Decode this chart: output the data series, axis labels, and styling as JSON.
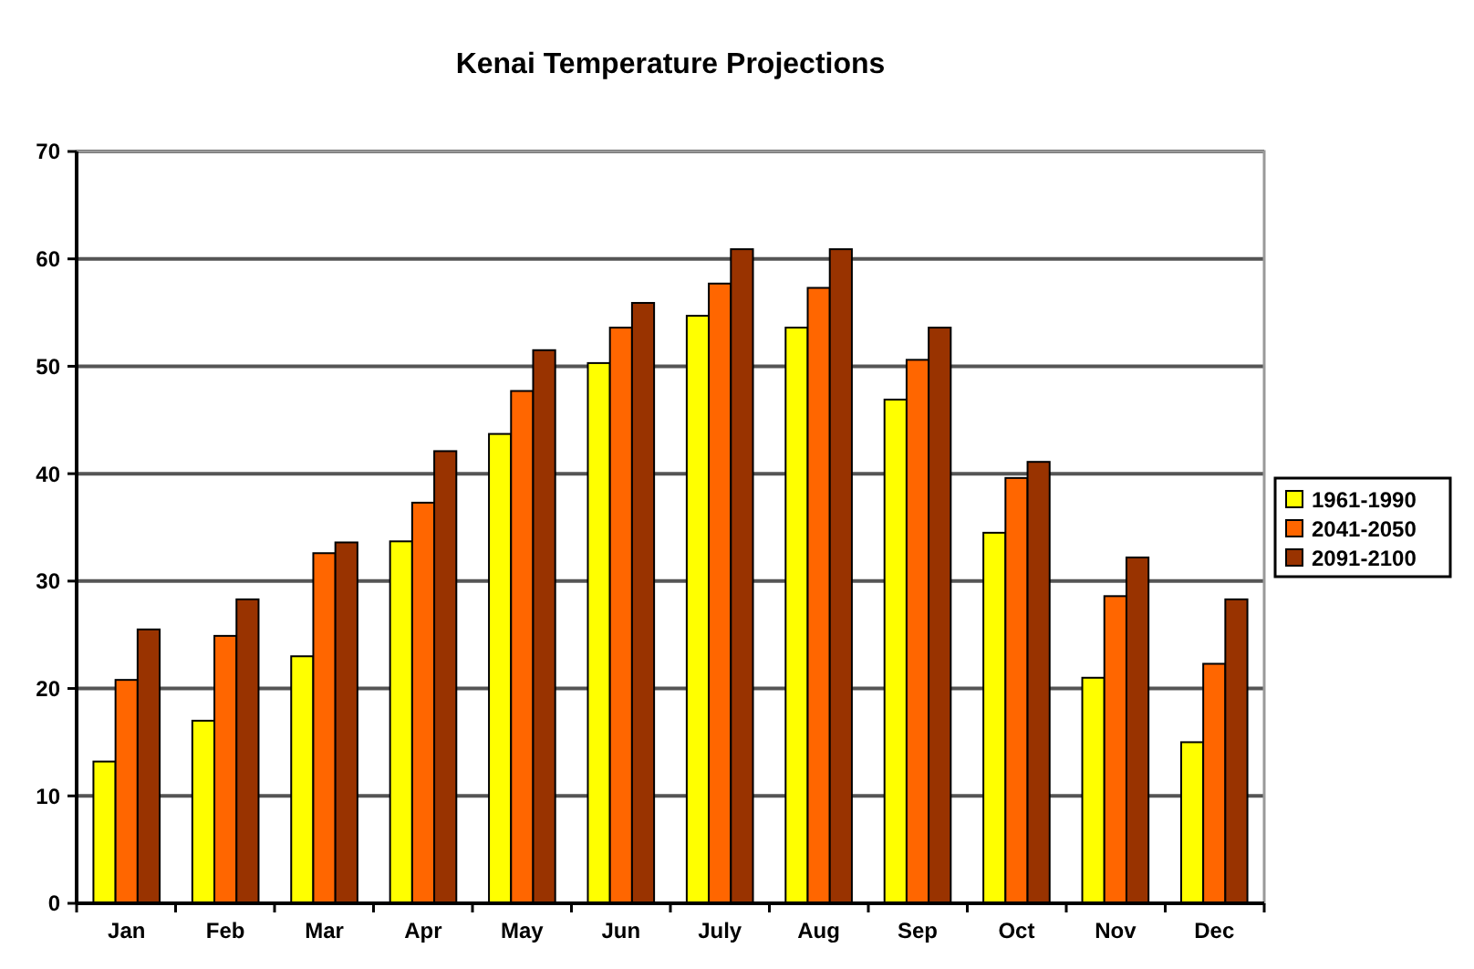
{
  "chart_data": {
    "type": "bar",
    "title": "Kenai Temperature Projections",
    "categories": [
      "Jan",
      "Feb",
      "Mar",
      "Apr",
      "May",
      "Jun",
      "July",
      "Aug",
      "Sep",
      "Oct",
      "Nov",
      "Dec"
    ],
    "series": [
      {
        "name": "1961-1990",
        "color": "#ffff00",
        "values": [
          13.2,
          17,
          23,
          33.7,
          43.7,
          50.3,
          54.7,
          53.6,
          46.9,
          34.5,
          21,
          15
        ]
      },
      {
        "name": "2041-2050",
        "color": "#ff6600",
        "values": [
          20.8,
          24.9,
          32.6,
          37.3,
          47.7,
          53.6,
          57.7,
          57.3,
          50.6,
          39.6,
          28.6,
          22.3
        ]
      },
      {
        "name": "2091-2100",
        "color": "#993300",
        "values": [
          25.5,
          28.3,
          33.6,
          42.1,
          51.5,
          55.9,
          60.9,
          60.9,
          53.6,
          41.1,
          32.2,
          28.3
        ]
      }
    ],
    "ylim": [
      0,
      70
    ],
    "yticks": [
      0,
      10,
      20,
      30,
      40,
      50,
      60,
      70
    ],
    "grid": "y",
    "legend": "right"
  }
}
